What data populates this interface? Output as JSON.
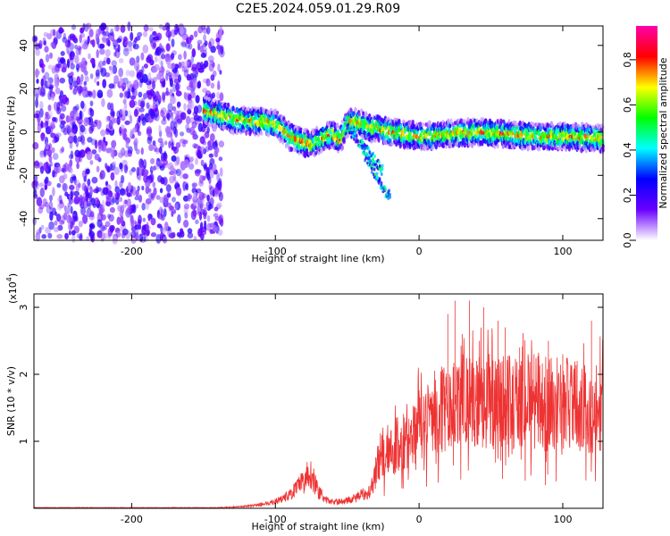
{
  "chart_data": [
    {
      "type": "heatmap",
      "title": "C2E5.2024.059.01.29.R09",
      "xlabel": "Height of straight line (km)",
      "ylabel": "Frequency (Hz)",
      "xlim": [
        -268,
        128
      ],
      "ylim": [
        -50,
        49
      ],
      "xticks": [
        -200,
        -100,
        0,
        100
      ],
      "yticks": [
        -40,
        -20,
        0,
        20,
        40
      ],
      "colorbar": {
        "label": "Normalized spectral amplitude",
        "ticks": [
          "0.0",
          "0.2",
          "0.4",
          "0.6",
          "0.8"
        ],
        "range": [
          0,
          0.95
        ],
        "colors": [
          "#ffffff",
          "#6a00ff",
          "#0000ff",
          "#00ffff",
          "#00ff00",
          "#ffff00",
          "#ff0000",
          "#ff00aa"
        ]
      },
      "noise_region": {
        "x_from": -268,
        "x_to": -137
      },
      "ridge": {
        "x": [
          -150,
          -140,
          -130,
          -120,
          -110,
          -100,
          -90,
          -80,
          -75,
          -70,
          -65,
          -60,
          -55,
          -50,
          -45,
          -40,
          -35,
          -30,
          -25,
          -20,
          -10,
          0,
          20,
          40,
          60,
          80,
          100,
          128
        ],
        "y": [
          10,
          8,
          6,
          5,
          5,
          4,
          -2,
          -5,
          -6,
          -4,
          -2,
          -1,
          -4,
          4,
          5,
          4,
          2,
          2,
          1,
          0,
          -1,
          -2,
          -1,
          0,
          -1,
          -2,
          -2,
          -3
        ]
      },
      "branches": [
        {
          "x": [
            -50,
            -45,
            -40,
            -35,
            -30,
            -25
          ],
          "y": [
            2,
            -2,
            -6,
            -10,
            -14,
            -18
          ]
        },
        {
          "x": [
            -40,
            -35,
            -30,
            -25,
            -20
          ],
          "y": [
            -8,
            -14,
            -20,
            -26,
            -30
          ]
        }
      ]
    },
    {
      "type": "line",
      "xlabel": "Height of straight line (km)",
      "ylabel": "SNR (10 * v/v)",
      "scale_label": "(x10",
      "scale_exp": "4",
      "scale_close": ")",
      "xlim": [
        -268,
        128
      ],
      "ylim": [
        0,
        3.2
      ],
      "xticks": [
        -200,
        -100,
        0,
        100
      ],
      "yticks": [
        1,
        2,
        3
      ],
      "color": "#ee3333",
      "envelope": {
        "x": [
          -268,
          -140,
          -130,
          -120,
          -110,
          -100,
          -90,
          -85,
          -80,
          -77,
          -75,
          -72,
          -70,
          -65,
          -60,
          -55,
          -50,
          -45,
          -40,
          -35,
          -32,
          -30,
          -28,
          -25,
          -20,
          -15,
          -10,
          -5,
          0,
          10,
          20,
          30,
          40,
          50,
          60,
          70,
          80,
          90,
          100,
          110,
          120,
          128
        ],
        "y": [
          0.01,
          0.01,
          0.02,
          0.03,
          0.06,
          0.1,
          0.2,
          0.3,
          0.4,
          0.55,
          0.5,
          0.35,
          0.25,
          0.12,
          0.1,
          0.1,
          0.12,
          0.15,
          0.2,
          0.25,
          0.4,
          0.55,
          0.75,
          0.85,
          0.9,
          0.95,
          1.05,
          1.15,
          1.25,
          1.35,
          1.5,
          1.6,
          1.6,
          1.6,
          1.6,
          1.55,
          1.6,
          1.55,
          1.6,
          1.5,
          1.5,
          1.55
        ]
      },
      "peaks": {
        "x": [
          20,
          25,
          30,
          35,
          40,
          42,
          45,
          55,
          60,
          70,
          80,
          90,
          100,
          110,
          120
        ],
        "y": [
          2.9,
          3.1,
          2.6,
          3.1,
          2.2,
          2.5,
          3.0,
          2.8,
          2.7,
          2.4,
          2.3,
          2.5,
          2.3,
          2.2,
          2.8
        ]
      }
    }
  ]
}
